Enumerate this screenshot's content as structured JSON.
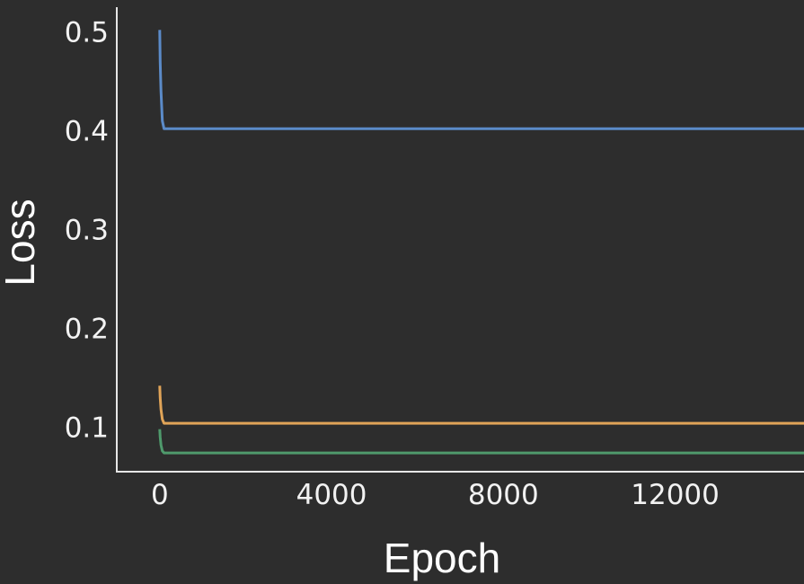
{
  "chart_data": {
    "type": "line",
    "title": "",
    "xlabel": "Epoch",
    "ylabel": "Loss",
    "xlim": [
      -1000,
      15000
    ],
    "ylim": [
      0.055,
      0.525
    ],
    "x_ticks": [
      0,
      4000,
      8000,
      12000
    ],
    "x_tick_labels": [
      "0",
      "4000",
      "8000",
      "12000"
    ],
    "y_ticks": [
      0.1,
      0.2,
      0.3,
      0.4,
      0.5
    ],
    "y_tick_labels": [
      "0.1",
      "0.2",
      "0.3",
      "0.4",
      "0.5"
    ],
    "grid": false,
    "series": [
      {
        "color": "#5b8bc9",
        "x": [
          0,
          10,
          30,
          60,
          100,
          15000
        ],
        "y": [
          0.502,
          0.47,
          0.44,
          0.41,
          0.402,
          0.402
        ]
      },
      {
        "color": "#e0a458",
        "x": [
          0,
          10,
          30,
          60,
          100,
          15000
        ],
        "y": [
          0.142,
          0.13,
          0.118,
          0.108,
          0.104,
          0.104
        ]
      },
      {
        "color": "#4f9a6c",
        "x": [
          0,
          10,
          30,
          60,
          100,
          15000
        ],
        "y": [
          0.098,
          0.09,
          0.082,
          0.076,
          0.074,
          0.074
        ]
      }
    ]
  }
}
